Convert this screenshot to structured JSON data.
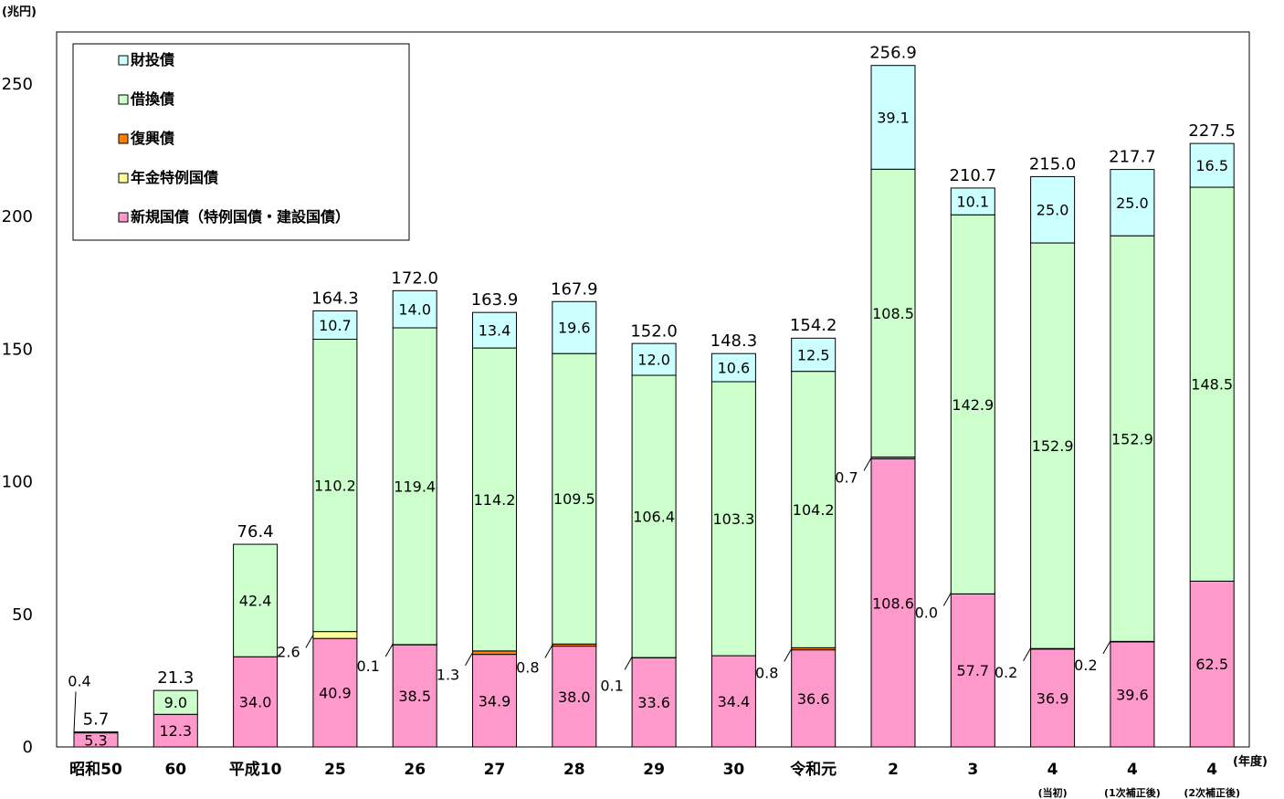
{
  "chart_data": {
    "type": "bar",
    "stacked": true,
    "y_unit": "(兆円)",
    "x_unit": "(年度)",
    "ylim": [
      0,
      275
    ],
    "yticks": [
      0,
      50,
      100,
      150,
      200,
      250
    ],
    "grid": false,
    "legend_position": "top-left",
    "categories": [
      "昭和50",
      "60",
      "平成10",
      "25",
      "26",
      "27",
      "28",
      "29",
      "30",
      "令和元",
      "2",
      "3",
      "4",
      "4",
      "4"
    ],
    "category_sublabels": [
      "",
      "",
      "",
      "",
      "",
      "",
      "",
      "",
      "",
      "",
      "",
      "",
      "(当初)",
      "(1次補正後)",
      "(2次補正後)"
    ],
    "series": [
      {
        "name": "新規国債（特例国債・建設国債）",
        "color": "#ff99cc",
        "values": [
          5.3,
          12.3,
          34.0,
          40.9,
          38.5,
          34.9,
          38.0,
          33.6,
          34.4,
          36.6,
          108.6,
          57.7,
          36.9,
          39.6,
          62.5
        ],
        "labels": [
          "5.3",
          "12.3",
          "34.0",
          "40.9",
          "38.5",
          "34.9",
          "38.0",
          "33.6",
          "34.4",
          "36.6",
          "108.6",
          "57.7",
          "36.9",
          "39.6",
          "62.5"
        ]
      },
      {
        "name": "年金特例国債",
        "color": "#ffff99",
        "values": [
          0,
          0,
          0,
          2.6,
          0,
          0,
          0,
          0,
          0,
          0,
          0,
          0,
          0,
          0,
          0
        ],
        "labels": [
          "",
          "",
          "",
          "2.6",
          "",
          "",
          "",
          "",
          "",
          "",
          "",
          "",
          "",
          "",
          ""
        ]
      },
      {
        "name": "復興債",
        "color": "#ff8000",
        "values": [
          0,
          0,
          0,
          0,
          0.1,
          1.3,
          0.8,
          0.1,
          0,
          0.8,
          0.7,
          0.0,
          0.2,
          0.2,
          0
        ],
        "labels": [
          "",
          "",
          "",
          "",
          "0.1",
          "1.3",
          "0.8",
          "0.1",
          "",
          "0.8",
          "0.7",
          "0.0",
          "0.2",
          "0.2",
          ""
        ]
      },
      {
        "name": "借換債",
        "color": "#ccffcc",
        "values": [
          0.4,
          9.0,
          42.4,
          110.2,
          119.4,
          114.2,
          109.5,
          106.4,
          103.3,
          104.2,
          108.5,
          142.9,
          152.9,
          152.9,
          148.5
        ],
        "labels": [
          "0.4",
          "9.0",
          "42.4",
          "110.2",
          "119.4",
          "114.2",
          "109.5",
          "106.4",
          "103.3",
          "104.2",
          "108.5",
          "142.9",
          "152.9",
          "152.9",
          "148.5"
        ]
      },
      {
        "name": "財投債",
        "color": "#ccffff",
        "values": [
          0,
          0,
          0,
          10.7,
          14.0,
          13.4,
          19.6,
          12.0,
          10.6,
          12.5,
          39.1,
          10.1,
          25.0,
          25.0,
          16.5
        ],
        "labels": [
          "",
          "",
          "",
          "10.7",
          "14.0",
          "13.4",
          "19.6",
          "12.0",
          "10.6",
          "12.5",
          "39.1",
          "10.1",
          "25.0",
          "25.0",
          "16.5"
        ]
      }
    ],
    "totals": [
      "5.7",
      "21.3",
      "76.4",
      "164.3",
      "172.0",
      "163.9",
      "167.9",
      "152.0",
      "148.3",
      "154.2",
      "256.9",
      "210.7",
      "215.0",
      "217.7",
      "227.5"
    ],
    "legend": [
      "財投債",
      "借換債",
      "復興債",
      "年金特例国債",
      "新規国債（特例国債・建設国債）"
    ]
  }
}
